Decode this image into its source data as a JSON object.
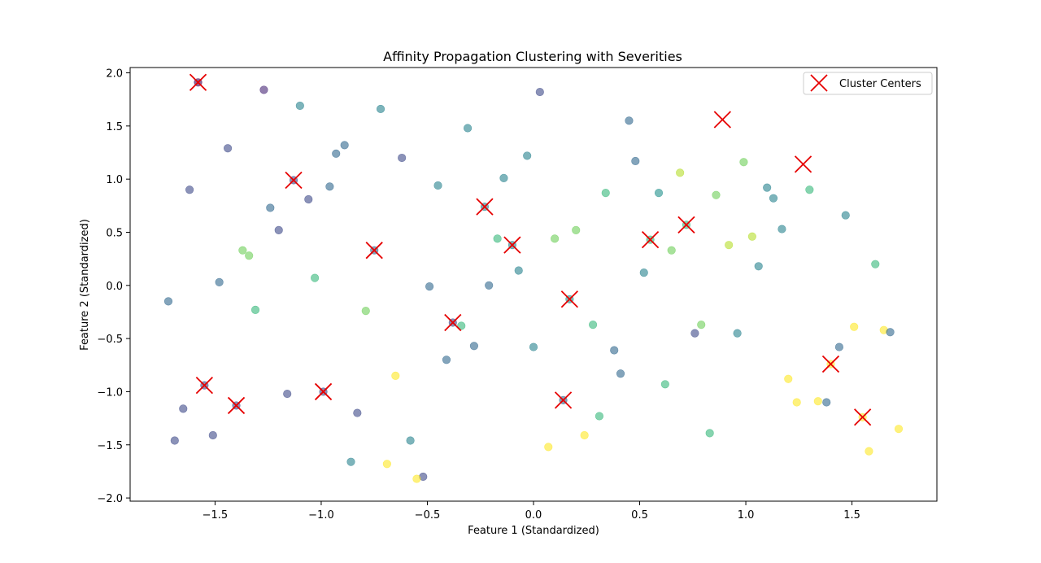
{
  "chart_data": {
    "type": "scatter",
    "title": "Affinity Propagation Clustering with Severities",
    "xlabel": "Feature 1 (Standardized)",
    "ylabel": "Feature 2 (Standardized)",
    "xlim": [
      -1.9,
      1.9
    ],
    "ylim": [
      -2.03,
      2.05
    ],
    "x_ticks": [
      -1.5,
      -1.0,
      -0.5,
      0.0,
      0.5,
      1.0,
      1.5
    ],
    "x_tick_labels": [
      "−1.5",
      "−1.0",
      "−0.5",
      "0.0",
      "0.5",
      "1.0",
      "1.5"
    ],
    "y_ticks": [
      -2.0,
      -1.5,
      -1.0,
      -0.5,
      0.0,
      0.5,
      1.0,
      1.5,
      2.0
    ],
    "y_tick_labels": [
      "−2.0",
      "−1.5",
      "−1.0",
      "−0.5",
      "0.0",
      "0.5",
      "1.0",
      "1.5",
      "2.0"
    ],
    "grid": false,
    "legend_position": "top-right",
    "colormap": "viridis",
    "point_alpha": 0.6,
    "series": [
      {
        "marker": "circle",
        "points": [
          {
            "x": -1.58,
            "y": 1.91,
            "c": "#440154"
          },
          {
            "x": -1.27,
            "y": 1.84,
            "c": "#482777"
          },
          {
            "x": -1.1,
            "y": 1.69,
            "c": "#26828e"
          },
          {
            "x": -0.72,
            "y": 1.66,
            "c": "#26828e"
          },
          {
            "x": 0.03,
            "y": 1.82,
            "c": "#3e4989"
          },
          {
            "x": -0.31,
            "y": 1.48,
            "c": "#26828e"
          },
          {
            "x": 0.45,
            "y": 1.55,
            "c": "#31688e"
          },
          {
            "x": -1.44,
            "y": 1.29,
            "c": "#3e4989"
          },
          {
            "x": -0.89,
            "y": 1.32,
            "c": "#31688e"
          },
          {
            "x": -0.93,
            "y": 1.24,
            "c": "#31688e"
          },
          {
            "x": -0.62,
            "y": 1.2,
            "c": "#3e4989"
          },
          {
            "x": -0.03,
            "y": 1.22,
            "c": "#26828e"
          },
          {
            "x": 0.48,
            "y": 1.17,
            "c": "#31688e"
          },
          {
            "x": -1.62,
            "y": 0.9,
            "c": "#3e4989"
          },
          {
            "x": -1.13,
            "y": 0.99,
            "c": "#3e4989"
          },
          {
            "x": -1.06,
            "y": 0.81,
            "c": "#3e4989"
          },
          {
            "x": -0.96,
            "y": 0.93,
            "c": "#31688e"
          },
          {
            "x": -0.45,
            "y": 0.94,
            "c": "#26828e"
          },
          {
            "x": -0.14,
            "y": 1.01,
            "c": "#26828e"
          },
          {
            "x": 0.34,
            "y": 0.87,
            "c": "#35b779"
          },
          {
            "x": 0.59,
            "y": 0.87,
            "c": "#21918c"
          },
          {
            "x": 0.69,
            "y": 1.06,
            "c": "#b5de2b"
          },
          {
            "x": 0.86,
            "y": 0.85,
            "c": "#6ece58"
          },
          {
            "x": 0.99,
            "y": 1.16,
            "c": "#6ece58"
          },
          {
            "x": 1.1,
            "y": 0.92,
            "c": "#26828e"
          },
          {
            "x": 1.13,
            "y": 0.82,
            "c": "#26828e"
          },
          {
            "x": 1.3,
            "y": 0.9,
            "c": "#35b779"
          },
          {
            "x": 1.47,
            "y": 0.66,
            "c": "#26828e"
          },
          {
            "x": -1.24,
            "y": 0.73,
            "c": "#31688e"
          },
          {
            "x": -1.2,
            "y": 0.52,
            "c": "#3e4989"
          },
          {
            "x": -0.23,
            "y": 0.74,
            "c": "#26828e"
          },
          {
            "x": -1.37,
            "y": 0.33,
            "c": "#6ece58"
          },
          {
            "x": -1.34,
            "y": 0.28,
            "c": "#6ece58"
          },
          {
            "x": -0.75,
            "y": 0.33,
            "c": "#31688e"
          },
          {
            "x": -0.17,
            "y": 0.44,
            "c": "#35b779"
          },
          {
            "x": -0.1,
            "y": 0.38,
            "c": "#26828e"
          },
          {
            "x": 0.1,
            "y": 0.44,
            "c": "#6ece58"
          },
          {
            "x": 0.2,
            "y": 0.52,
            "c": "#6ece58"
          },
          {
            "x": 0.55,
            "y": 0.43,
            "c": "#35b779"
          },
          {
            "x": 0.72,
            "y": 0.57,
            "c": "#35b779"
          },
          {
            "x": 0.65,
            "y": 0.33,
            "c": "#6ece58"
          },
          {
            "x": 0.92,
            "y": 0.38,
            "c": "#b5de2b"
          },
          {
            "x": 1.03,
            "y": 0.46,
            "c": "#b5de2b"
          },
          {
            "x": 1.17,
            "y": 0.53,
            "c": "#26828e"
          },
          {
            "x": 1.61,
            "y": 0.2,
            "c": "#35b779"
          },
          {
            "x": -1.48,
            "y": 0.03,
            "c": "#31688e"
          },
          {
            "x": -1.03,
            "y": 0.07,
            "c": "#35b779"
          },
          {
            "x": -0.49,
            "y": -0.01,
            "c": "#31688e"
          },
          {
            "x": -0.21,
            "y": 0.0,
            "c": "#31688e"
          },
          {
            "x": -0.07,
            "y": 0.14,
            "c": "#26828e"
          },
          {
            "x": 0.52,
            "y": 0.12,
            "c": "#26828e"
          },
          {
            "x": 1.06,
            "y": 0.18,
            "c": "#26828e"
          },
          {
            "x": -1.72,
            "y": -0.15,
            "c": "#31688e"
          },
          {
            "x": -1.31,
            "y": -0.23,
            "c": "#35b779"
          },
          {
            "x": -0.79,
            "y": -0.24,
            "c": "#6ece58"
          },
          {
            "x": 0.17,
            "y": -0.13,
            "c": "#21918c"
          },
          {
            "x": -0.38,
            "y": -0.35,
            "c": "#3e4989"
          },
          {
            "x": -0.34,
            "y": -0.38,
            "c": "#35b779"
          },
          {
            "x": 0.28,
            "y": -0.37,
            "c": "#35b779"
          },
          {
            "x": 0.79,
            "y": -0.37,
            "c": "#6ece58"
          },
          {
            "x": 0.76,
            "y": -0.45,
            "c": "#3e4989"
          },
          {
            "x": 0.96,
            "y": -0.45,
            "c": "#26828e"
          },
          {
            "x": 1.51,
            "y": -0.39,
            "c": "#fde725"
          },
          {
            "x": 1.65,
            "y": -0.42,
            "c": "#fde725"
          },
          {
            "x": 1.68,
            "y": -0.44,
            "c": "#31688e"
          },
          {
            "x": 1.44,
            "y": -0.58,
            "c": "#31688e"
          },
          {
            "x": -0.41,
            "y": -0.7,
            "c": "#31688e"
          },
          {
            "x": -0.28,
            "y": -0.57,
            "c": "#31688e"
          },
          {
            "x": 0.0,
            "y": -0.58,
            "c": "#26828e"
          },
          {
            "x": 0.38,
            "y": -0.61,
            "c": "#31688e"
          },
          {
            "x": 0.41,
            "y": -0.83,
            "c": "#31688e"
          },
          {
            "x": 0.62,
            "y": -0.93,
            "c": "#35b779"
          },
          {
            "x": 1.4,
            "y": -0.74,
            "c": "#fde725"
          },
          {
            "x": 1.2,
            "y": -0.88,
            "c": "#fde725"
          },
          {
            "x": -0.65,
            "y": -0.85,
            "c": "#fde725"
          },
          {
            "x": -1.55,
            "y": -0.94,
            "c": "#3e4989"
          },
          {
            "x": -1.65,
            "y": -1.16,
            "c": "#3e4989"
          },
          {
            "x": -1.4,
            "y": -1.13,
            "c": "#3e4989"
          },
          {
            "x": -1.16,
            "y": -1.02,
            "c": "#3e4989"
          },
          {
            "x": -0.99,
            "y": -1.0,
            "c": "#3e4989"
          },
          {
            "x": -0.83,
            "y": -1.2,
            "c": "#3e4989"
          },
          {
            "x": 0.14,
            "y": -1.08,
            "c": "#31688e"
          },
          {
            "x": 0.31,
            "y": -1.23,
            "c": "#35b779"
          },
          {
            "x": 1.24,
            "y": -1.1,
            "c": "#fde725"
          },
          {
            "x": 1.34,
            "y": -1.09,
            "c": "#fde725"
          },
          {
            "x": 1.38,
            "y": -1.1,
            "c": "#31688e"
          },
          {
            "x": 1.55,
            "y": -1.24,
            "c": "#fde725"
          },
          {
            "x": -1.69,
            "y": -1.46,
            "c": "#3e4989"
          },
          {
            "x": -1.51,
            "y": -1.41,
            "c": "#3e4989"
          },
          {
            "x": -0.86,
            "y": -1.66,
            "c": "#26828e"
          },
          {
            "x": -0.58,
            "y": -1.46,
            "c": "#26828e"
          },
          {
            "x": -0.69,
            "y": -1.68,
            "c": "#fde725"
          },
          {
            "x": -0.52,
            "y": -1.8,
            "c": "#3e4989"
          },
          {
            "x": -0.55,
            "y": -1.82,
            "c": "#fde725"
          },
          {
            "x": 0.07,
            "y": -1.52,
            "c": "#fde725"
          },
          {
            "x": 0.24,
            "y": -1.41,
            "c": "#fde725"
          },
          {
            "x": 0.83,
            "y": -1.39,
            "c": "#35b779"
          },
          {
            "x": 1.58,
            "y": -1.56,
            "c": "#fde725"
          },
          {
            "x": 1.72,
            "y": -1.35,
            "c": "#fde725"
          }
        ]
      },
      {
        "name": "Cluster Centers",
        "marker": "x",
        "color": "#e60000",
        "points": [
          {
            "x": -1.58,
            "y": 1.91
          },
          {
            "x": -1.13,
            "y": 0.99
          },
          {
            "x": -0.75,
            "y": 0.33
          },
          {
            "x": -0.23,
            "y": 0.74
          },
          {
            "x": -0.1,
            "y": 0.38
          },
          {
            "x": 0.89,
            "y": 1.56
          },
          {
            "x": 1.27,
            "y": 1.14
          },
          {
            "x": 0.55,
            "y": 0.43
          },
          {
            "x": 0.72,
            "y": 0.57
          },
          {
            "x": 0.17,
            "y": -0.13
          },
          {
            "x": -0.38,
            "y": -0.35
          },
          {
            "x": -1.55,
            "y": -0.94
          },
          {
            "x": -1.4,
            "y": -1.13
          },
          {
            "x": -0.99,
            "y": -1.0
          },
          {
            "x": 0.14,
            "y": -1.08
          },
          {
            "x": 1.4,
            "y": -0.74
          },
          {
            "x": 1.55,
            "y": -1.24
          }
        ]
      }
    ]
  }
}
